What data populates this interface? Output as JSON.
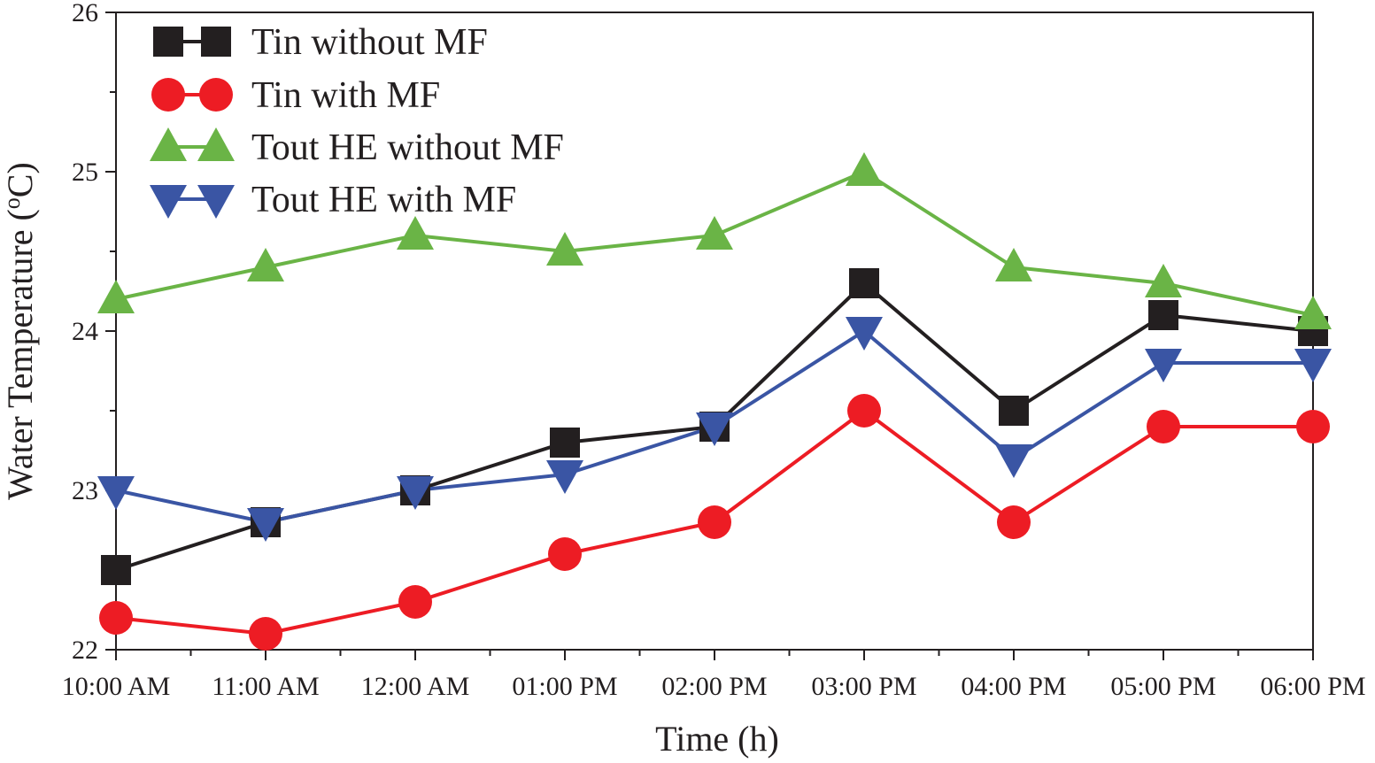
{
  "chart_data": {
    "type": "line",
    "title": "",
    "xlabel": "Time (h)",
    "ylabel": "Water Temperature (",
    "ylabel_super": "o",
    "ylabel_suffix": "C)",
    "categories": [
      "10:00 AM",
      "11:00 AM",
      "12:00 AM",
      "01:00 PM",
      "02:00 PM",
      "03:00 PM",
      "04:00 PM",
      "05:00 PM",
      "06:00 PM"
    ],
    "ylim": [
      22,
      26
    ],
    "yticks": [
      "22",
      "23",
      "24",
      "25",
      "26"
    ],
    "legend_position": "top-left",
    "series": [
      {
        "name": "Tin without MF",
        "marker": "square",
        "color": "#231f20",
        "values": [
          22.5,
          22.8,
          23.0,
          23.3,
          23.4,
          24.3,
          23.5,
          24.1,
          24.0
        ]
      },
      {
        "name": "Tin with MF",
        "marker": "circle",
        "color": "#ed1c24",
        "values": [
          22.2,
          22.1,
          22.3,
          22.6,
          22.8,
          23.5,
          22.8,
          23.4,
          23.4
        ]
      },
      {
        "name": "Tout HE without MF",
        "marker": "triangle-up",
        "color": "#6ab446",
        "values": [
          24.2,
          24.4,
          24.6,
          24.5,
          24.6,
          25.0,
          24.4,
          24.3,
          24.1
        ]
      },
      {
        "name": "Tout HE with MF",
        "marker": "triangle-down",
        "color": "#3a55a4",
        "values": [
          23.0,
          22.8,
          23.0,
          23.1,
          23.4,
          24.0,
          23.2,
          23.8,
          23.8
        ]
      }
    ]
  }
}
